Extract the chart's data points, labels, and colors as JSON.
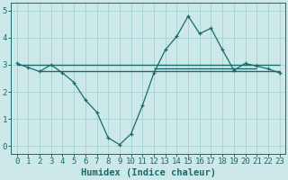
{
  "xlabel": "Humidex (Indice chaleur)",
  "background_color": "#cce8e8",
  "grid_color": "#aad4d4",
  "line_color": "#1a6b6b",
  "xlim": [
    -0.5,
    23.5
  ],
  "ylim": [
    -0.3,
    5.3
  ],
  "yticks": [
    0,
    1,
    2,
    3,
    4,
    5
  ],
  "xticks": [
    0,
    1,
    2,
    3,
    4,
    5,
    6,
    7,
    8,
    9,
    10,
    11,
    12,
    13,
    14,
    15,
    16,
    17,
    18,
    19,
    20,
    21,
    22,
    23
  ],
  "curve1_x": [
    0,
    1,
    2,
    3,
    4,
    5,
    6,
    7,
    8,
    9,
    10,
    11,
    12,
    13,
    14,
    15,
    16,
    17,
    18,
    19,
    20,
    21,
    22,
    23
  ],
  "curve1_y": [
    3.05,
    2.9,
    2.75,
    3.0,
    2.7,
    2.35,
    1.7,
    1.25,
    0.3,
    0.05,
    0.45,
    1.5,
    2.7,
    3.55,
    4.05,
    4.8,
    4.15,
    4.35,
    3.55,
    2.8,
    3.05,
    2.95,
    2.85,
    2.7
  ],
  "hline1_y": 3.0,
  "hline1_x_start": 0,
  "hline1_x_end": 23,
  "hline2_y": 2.75,
  "hline2_x_start": 2,
  "hline2_x_end": 23,
  "hline3_y": 2.85,
  "hline3_x_start": 12,
  "hline3_x_end": 21,
  "tick_fontsize": 6.5,
  "xlabel_fontsize": 7.5
}
